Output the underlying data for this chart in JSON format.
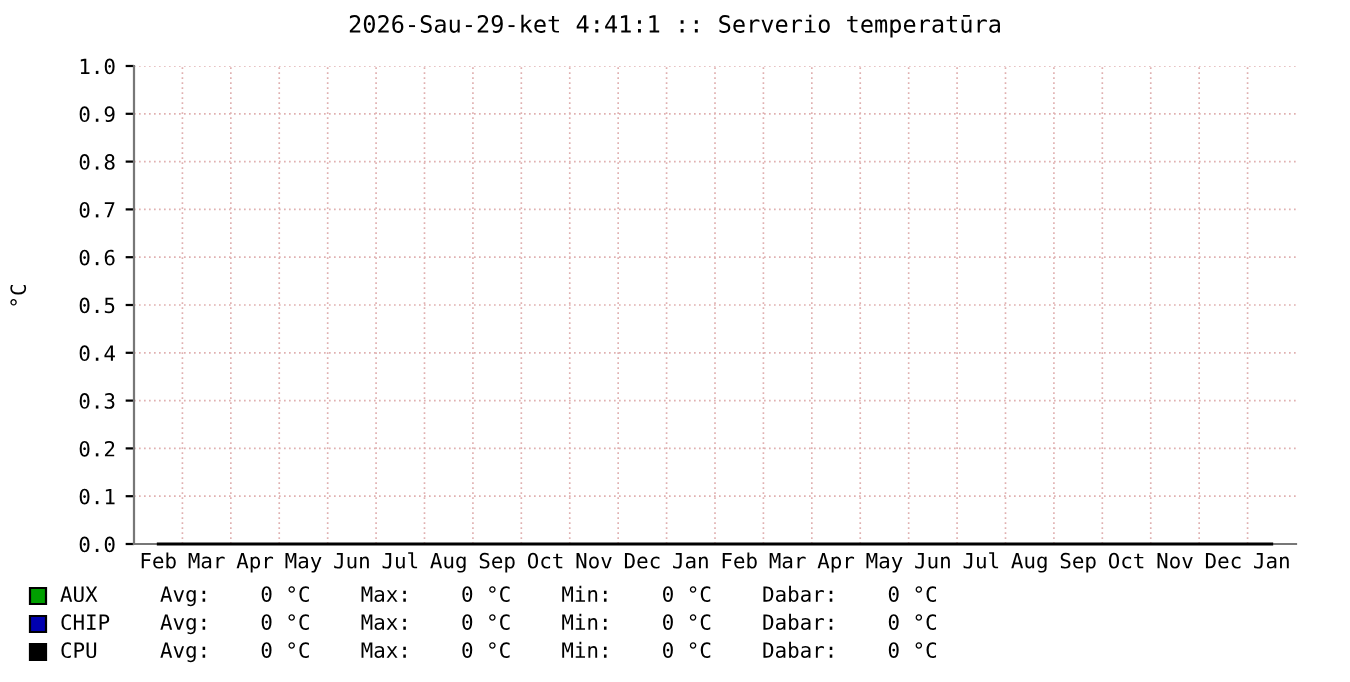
{
  "chart_data": {
    "type": "line",
    "title": "2026-Sau-29-ket 4:41:1 :: Serverio temperatūra",
    "ylabel": "°C",
    "categories": [
      "Feb",
      "Mar",
      "Apr",
      "May",
      "Jun",
      "Jul",
      "Aug",
      "Sep",
      "Oct",
      "Nov",
      "Dec",
      "Jan",
      "Feb",
      "Mar",
      "Apr",
      "May",
      "Jun",
      "Jul",
      "Aug",
      "Sep",
      "Oct",
      "Nov",
      "Dec",
      "Jan"
    ],
    "series": [
      {
        "name": "AUX",
        "color": "#00a000",
        "values": [
          null,
          null,
          null,
          null,
          null,
          null,
          null,
          null,
          null,
          null,
          null,
          null,
          null,
          null,
          null,
          null,
          null,
          null,
          null,
          null,
          null,
          null,
          null,
          null
        ]
      },
      {
        "name": "CHIP",
        "color": "#0000b0",
        "values": [
          null,
          null,
          null,
          null,
          null,
          null,
          null,
          null,
          null,
          null,
          null,
          null,
          null,
          null,
          null,
          null,
          null,
          null,
          null,
          null,
          null,
          null,
          null,
          null
        ]
      },
      {
        "name": "CPU",
        "color": "#000000",
        "values": [
          0,
          0,
          0,
          0,
          0,
          0,
          0,
          0,
          0,
          0,
          0,
          0,
          0,
          0,
          0,
          0,
          0,
          0,
          0,
          0,
          0,
          0,
          0,
          0
        ]
      }
    ],
    "ylim": [
      0,
      1
    ],
    "yticks": [
      {
        "value": 0,
        "label": "0.0"
      },
      {
        "value": 0.1,
        "label": "0.1"
      },
      {
        "value": 0.2,
        "label": "0.2"
      },
      {
        "value": 0.3,
        "label": "0.3"
      },
      {
        "value": 0.4,
        "label": "0.4"
      },
      {
        "value": 0.5,
        "label": "0.5"
      },
      {
        "value": 0.6,
        "label": "0.6"
      },
      {
        "value": 0.7,
        "label": "0.7"
      },
      {
        "value": 0.8,
        "label": "0.8"
      },
      {
        "value": 0.9,
        "label": "0.9"
      },
      {
        "value": 1,
        "label": "1.0"
      }
    ],
    "grid": true,
    "legend": "bottom",
    "annotations": [
      "Avg:    0 °C    Max:    0 °C    Min:    0 °C    Dabar:    0 °C",
      "Avg:    0 °C    Max:    0 °C    Min:    0 °C    Dabar:    0 °C",
      "Avg:    0 °C    Max:    0 °C    Min:    0 °C    Dabar:    0 °C"
    ]
  }
}
